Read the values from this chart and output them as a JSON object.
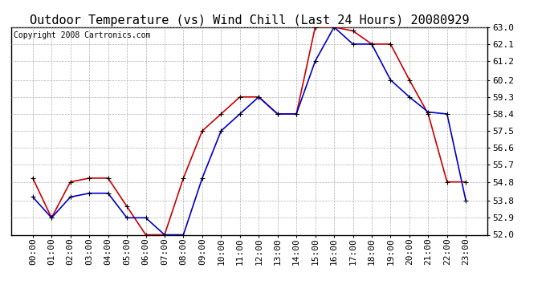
{
  "title": "Outdoor Temperature (vs) Wind Chill (Last 24 Hours) 20080929",
  "copyright": "Copyright 2008 Cartronics.com",
  "x_labels": [
    "00:00",
    "01:00",
    "02:00",
    "03:00",
    "04:00",
    "05:00",
    "06:00",
    "07:00",
    "08:00",
    "09:00",
    "10:00",
    "11:00",
    "12:00",
    "13:00",
    "14:00",
    "15:00",
    "16:00",
    "17:00",
    "18:00",
    "19:00",
    "20:00",
    "21:00",
    "22:00",
    "23:00"
  ],
  "temp_red": [
    55.0,
    52.9,
    54.8,
    55.0,
    55.0,
    53.5,
    52.0,
    52.0,
    55.0,
    57.5,
    58.4,
    59.3,
    59.3,
    58.4,
    58.4,
    63.0,
    63.0,
    62.8,
    62.1,
    62.1,
    60.2,
    58.4,
    54.8,
    54.8
  ],
  "wind_blue": [
    54.0,
    52.9,
    54.0,
    54.2,
    54.2,
    52.9,
    52.9,
    52.0,
    52.0,
    55.0,
    57.5,
    58.4,
    59.3,
    58.4,
    58.4,
    61.2,
    63.0,
    62.1,
    62.1,
    60.2,
    59.3,
    58.5,
    58.4,
    53.8
  ],
  "ylim_min": 52.0,
  "ylim_max": 63.0,
  "yticks": [
    52.0,
    52.9,
    53.8,
    54.8,
    55.7,
    56.6,
    57.5,
    58.4,
    59.3,
    60.2,
    61.2,
    62.1,
    63.0
  ],
  "red_color": "#cc0000",
  "blue_color": "#0000cc",
  "bg_color": "#ffffff",
  "plot_bg": "#ffffff",
  "grid_color": "#aaaaaa",
  "title_fontsize": 11,
  "tick_fontsize": 8,
  "copyright_fontsize": 7
}
